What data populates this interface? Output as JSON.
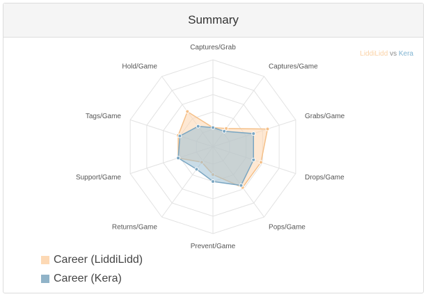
{
  "panel": {
    "title": "Summary"
  },
  "corner_legend": {
    "player_a": "LiddiLidd",
    "separator": "vs",
    "player_b": "Kera"
  },
  "chart_data": {
    "type": "radar",
    "axes": [
      "Captures/Grab",
      "Captures/Game",
      "Grabs/Game",
      "Drops/Game",
      "Pops/Game",
      "Prevent/Game",
      "Returns/Game",
      "Support/Game",
      "Tags/Game",
      "Hold/Game"
    ],
    "rings": 5,
    "range": [
      0,
      1
    ],
    "grid": true,
    "series": [
      {
        "name": "Career (LiddiLidd)",
        "color": "#fdd9b5",
        "stroke": "#f5c089",
        "values": [
          0.22,
          0.26,
          0.66,
          0.58,
          0.58,
          0.32,
          0.22,
          0.42,
          0.42,
          0.5
        ]
      },
      {
        "name": "Career (Kera)",
        "color": "#9dbfd3",
        "stroke": "#7aa6c2",
        "values": [
          0.22,
          0.22,
          0.49,
          0.49,
          0.55,
          0.4,
          0.32,
          0.42,
          0.4,
          0.29
        ]
      }
    ]
  }
}
